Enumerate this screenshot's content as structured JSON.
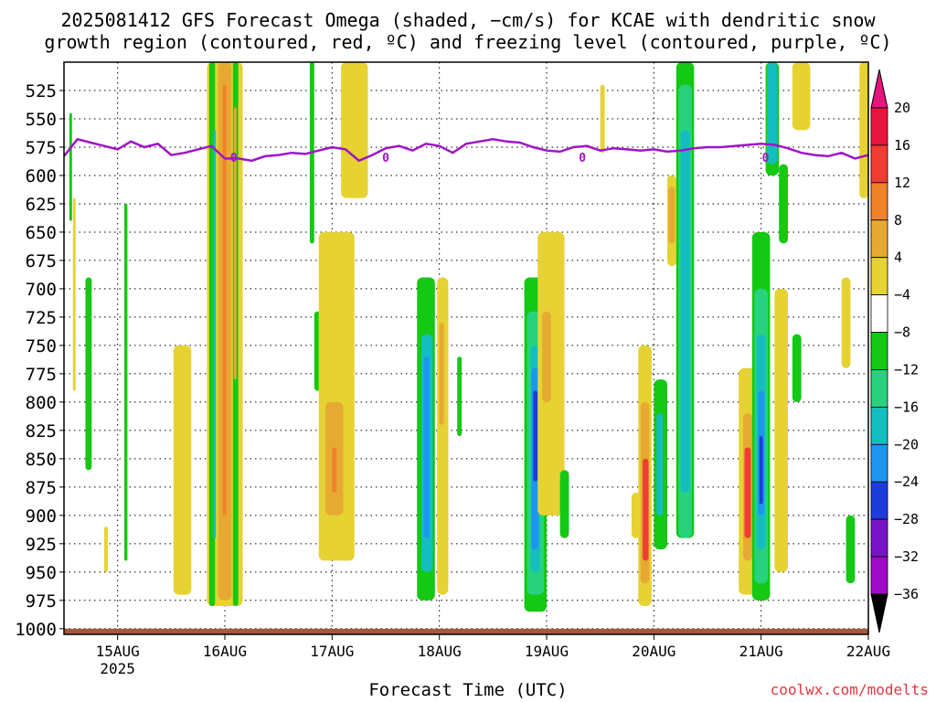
{
  "title_line1": "2025081412 GFS Forecast Omega (shaded, −cm/s) for KCAE with dendritic snow",
  "title_line2": "growth region (contoured, red, ºC) and freezing level (contoured, purple, ºC)",
  "xaxis_title": "Forecast Time (UTC)",
  "credit": "coolwx.com/modelts",
  "chart_data": {
    "type": "heatmap",
    "title": "2025081412 GFS Forecast Omega (shaded, −cm/s) for KCAE with dendritic snow growth region (contoured, red, ºC) and freezing level (contoured, purple, ºC)",
    "xlabel": "Forecast Time (UTC)",
    "ylabel": "",
    "x_tick_labels": [
      "15AUG",
      "16AUG",
      "17AUG",
      "18AUG",
      "19AUG",
      "20AUG",
      "21AUG",
      "22AUG"
    ],
    "x_year_label": "2025",
    "x_tick_hours": [
      12,
      36,
      60,
      84,
      108,
      132,
      156,
      180
    ],
    "xlim_hours": [
      0,
      180
    ],
    "y_ticks": [
      525,
      550,
      575,
      600,
      625,
      650,
      675,
      700,
      725,
      750,
      775,
      800,
      825,
      850,
      875,
      900,
      925,
      950,
      975,
      1000
    ],
    "ylim": [
      500,
      1005
    ],
    "grid": true,
    "colorbar": {
      "labels": [
        "20",
        "16",
        "12",
        "8",
        "4",
        "−4",
        "−8",
        "−12",
        "−16",
        "−20",
        "−24",
        "−28",
        "−32",
        "−36"
      ],
      "colors": [
        "#e8143c",
        "#f03c32",
        "#f08228",
        "#e6aa32",
        "#e6d232",
        "#ffffff",
        "#14c814",
        "#28d27d",
        "#14bebe",
        "#1e96f0",
        "#1e3cdc",
        "#7814c8",
        "#a00ac8",
        "#a0a0a0"
      ],
      "top_color": "#e6147d",
      "bottom_color": "#000000"
    },
    "freezing_level": {
      "name": "0",
      "color": "#a014c8",
      "hours": [
        0,
        3,
        6,
        9,
        12,
        15,
        18,
        21,
        24,
        27,
        30,
        33,
        36,
        39,
        42,
        45,
        48,
        51,
        54,
        57,
        60,
        63,
        66,
        69,
        72,
        75,
        78,
        81,
        84,
        87,
        90,
        93,
        96,
        99,
        102,
        105,
        108,
        111,
        114,
        117,
        120,
        123,
        126,
        129,
        132,
        135,
        138,
        141,
        144,
        147,
        150,
        153,
        156,
        159,
        162,
        165,
        168,
        171,
        174,
        177,
        180
      ],
      "levels": [
        583,
        568,
        571,
        574,
        577,
        570,
        575,
        572,
        582,
        580,
        577,
        574,
        585,
        585,
        587,
        583,
        582,
        580,
        581,
        578,
        575,
        577,
        587,
        582,
        576,
        574,
        578,
        572,
        574,
        580,
        572,
        570,
        568,
        570,
        571,
        575,
        578,
        579,
        575,
        574,
        578,
        576,
        577,
        578,
        577,
        579,
        578,
        576,
        575,
        575,
        574,
        573,
        572,
        573,
        576,
        580,
        582,
        583,
        580,
        585,
        582
      ]
    },
    "surface_color": "#a05a3c"
  }
}
